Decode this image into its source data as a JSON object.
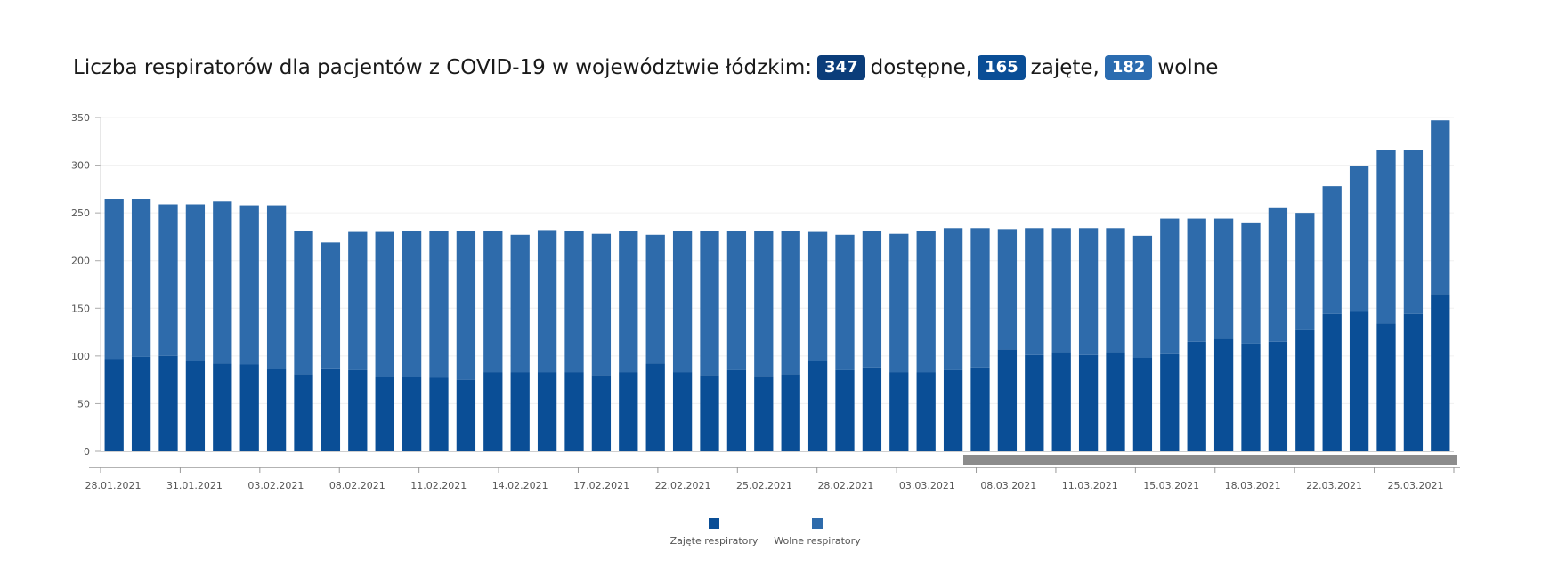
{
  "title": {
    "prefix": "Liczba respiratorów dla pacjentów z COVID-19 w województwie łódzkim:",
    "available_value": "347",
    "available_label": "dostępne,",
    "occupied_value": "165",
    "occupied_label": "zajęte,",
    "free_value": "182",
    "free_label": "wolne"
  },
  "colors": {
    "occupied": "#0a4e96",
    "free": "#2e6bab",
    "badge_available": "#0b3d7a",
    "badge_occupied": "#0a4e96",
    "badge_free": "#2b6cb0",
    "scrollbar": "#8c8c8c"
  },
  "chart_data": {
    "type": "bar",
    "stacked": true,
    "ylim": [
      0,
      350
    ],
    "yticks": [
      "0",
      "50",
      "100",
      "150",
      "200",
      "250",
      "300",
      "350"
    ],
    "grid": true,
    "legend_position": "bottom-center",
    "tick_labels": [
      "28.01.2021",
      "31.01.2021",
      "03.02.2021",
      "08.02.2021",
      "11.02.2021",
      "14.02.2021",
      "17.02.2021",
      "22.02.2021",
      "25.02.2021",
      "28.02.2021",
      "03.03.2021",
      "08.03.2021",
      "11.03.2021",
      "15.03.2021",
      "18.03.2021",
      "22.03.2021",
      "25.03.2021"
    ],
    "series": [
      {
        "name": "Zajęte respiratory",
        "color": "#0a4e96",
        "values": [
          97,
          99,
          100,
          95,
          92,
          91,
          86,
          81,
          87,
          85,
          78,
          78,
          77,
          75,
          83,
          83,
          83,
          83,
          80,
          83,
          92,
          83,
          80,
          85,
          79,
          81,
          95,
          85,
          88,
          83,
          83,
          85,
          88,
          107,
          101,
          104,
          101,
          104,
          98,
          102,
          115,
          118,
          113,
          115,
          127,
          144,
          147,
          134,
          144,
          165
        ]
      },
      {
        "name": "Wolne respiratory",
        "color": "#2e6bab",
        "values": [
          168,
          166,
          159,
          164,
          170,
          167,
          172,
          150,
          132,
          145,
          152,
          153,
          154,
          156,
          148,
          144,
          149,
          148,
          148,
          148,
          135,
          148,
          151,
          146,
          152,
          150,
          135,
          142,
          143,
          145,
          148,
          149,
          146,
          126,
          133,
          130,
          133,
          130,
          128,
          142,
          129,
          126,
          127,
          140,
          123,
          134,
          152,
          182,
          172,
          182
        ]
      }
    ]
  }
}
